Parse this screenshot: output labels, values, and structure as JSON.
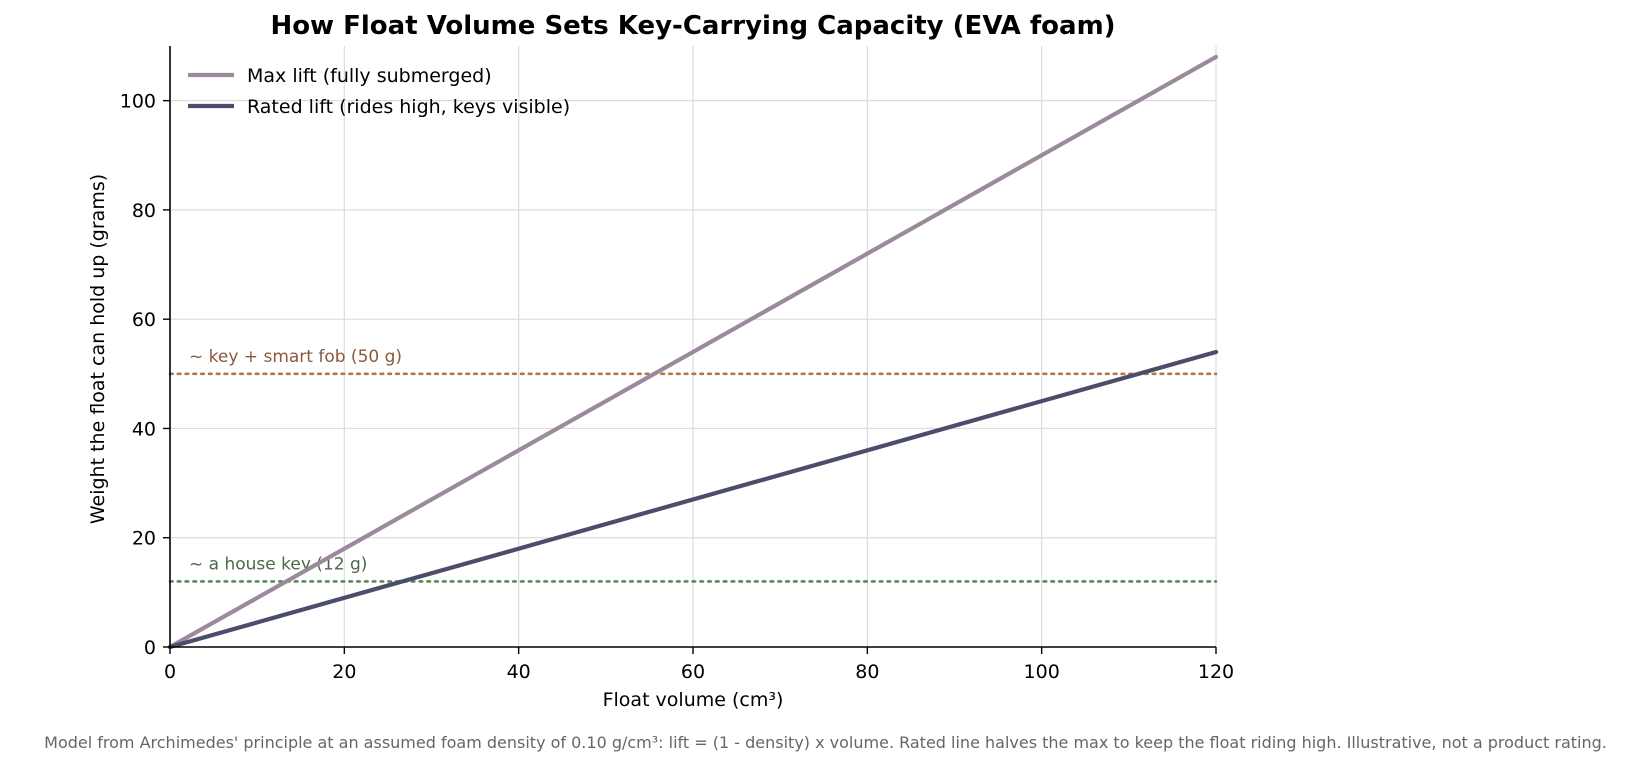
{
  "chart_data": {
    "type": "line",
    "title": "How Float Volume Sets Key-Carrying Capacity (EVA foam)",
    "xlabel": "Float volume (cm³)",
    "ylabel": "Weight the float can hold up (grams)",
    "xlim": [
      0,
      120
    ],
    "ylim": [
      0,
      110
    ],
    "xticks": [
      0,
      20,
      40,
      60,
      80,
      100,
      120
    ],
    "yticks": [
      0,
      20,
      40,
      60,
      80,
      100
    ],
    "grid": true,
    "legend_position": "top-left",
    "series": [
      {
        "name": "Max lift (fully submerged)",
        "x": [
          0,
          120
        ],
        "y": [
          0,
          108
        ],
        "color": "#9b8a9b"
      },
      {
        "name": "Rated lift (rides high, keys visible)",
        "x": [
          0,
          120
        ],
        "y": [
          0,
          54
        ],
        "color": "#4a4e6a"
      }
    ],
    "reference_lines": [
      {
        "label": "~ key + smart fob (50 g)",
        "y": 50,
        "color": "#b07850",
        "label_color": "#8a5a3a"
      },
      {
        "label": "~ a house key (12 g)",
        "y": 12,
        "color": "#5a8a5a",
        "label_color": "#4a6a4a"
      }
    ]
  },
  "footnote": "Model from Archimedes' principle at an assumed foam density of 0.10 g/cm³: lift = (1 - density) x volume. Rated line halves the max to keep the float riding high. Illustrative, not a product rating."
}
